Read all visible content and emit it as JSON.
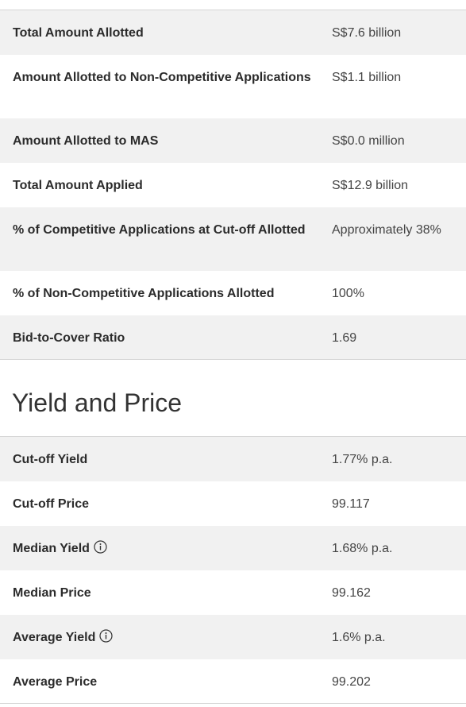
{
  "allotment": {
    "rows": [
      {
        "label": "Total Amount Allotted",
        "value": "S$7.6 billion"
      },
      {
        "label": "Amount Allotted to Non-Competitive Applications",
        "value": "S$1.1 billion"
      },
      {
        "label": "Amount Allotted to MAS",
        "value": "S$0.0 million"
      },
      {
        "label": "Total Amount Applied",
        "value": "S$12.9 billion"
      },
      {
        "label": "% of Competitive Applications at Cut-off Allotted",
        "value": "Approximately 38%"
      },
      {
        "label": "% of Non-Competitive Applications Allotted",
        "value": "100%"
      },
      {
        "label": "Bid-to-Cover Ratio",
        "value": "1.69"
      }
    ]
  },
  "yield_price": {
    "title": "Yield and Price",
    "rows": [
      {
        "label": "Cut-off Yield",
        "value": "1.77% p.a."
      },
      {
        "label": "Cut-off Price",
        "value": "99.117"
      },
      {
        "label": "Median Yield",
        "value": "1.68% p.a.",
        "icon": "info-icon"
      },
      {
        "label": "Median Price",
        "value": "99.162"
      },
      {
        "label": "Average Yield",
        "value": "1.6% p.a.",
        "icon": "info-icon"
      },
      {
        "label": "Average Price",
        "value": "99.202"
      }
    ]
  },
  "colors": {
    "row_shaded": "#f1f1f1",
    "row_plain": "#ffffff",
    "divider": "#d6d6d6",
    "label_text": "#2b2b2b",
    "value_text": "#444444"
  }
}
